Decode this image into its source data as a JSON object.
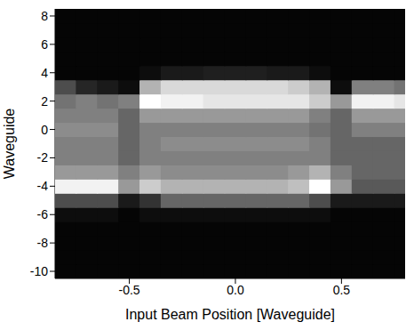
{
  "chart_data": {
    "type": "heatmap",
    "x_label": "Input Beam Position [Waveguide]",
    "y_label": "Waveguide",
    "xlim": [
      -0.85,
      0.8
    ],
    "ylim": [
      -10.5,
      8.5
    ],
    "xticks": [
      -0.5,
      {
        "value": 0,
        "label": "0.0"
      },
      0.5
    ],
    "yticks": [
      -10,
      -8,
      -6,
      -4,
      -2,
      0,
      2,
      4,
      6,
      8
    ],
    "x": [
      -0.8,
      -0.7,
      -0.6,
      -0.5,
      -0.4,
      -0.3,
      -0.2,
      -0.1,
      0,
      0.1,
      0.2,
      0.3,
      0.4,
      0.5,
      0.6,
      0.7,
      0.8
    ],
    "y": [
      -10,
      -9,
      -8,
      -7,
      -6,
      -5,
      -4,
      -3,
      -2,
      -1,
      0,
      1,
      2,
      3,
      4,
      5,
      6,
      7,
      8
    ],
    "values": [
      [
        0.02,
        0.02,
        0.02,
        0.02,
        0.02,
        0.02,
        0.02,
        0.02,
        0.02,
        0.02,
        0.02,
        0.02,
        0.02,
        0.02,
        0.02,
        0.02,
        0.02
      ],
      [
        0.02,
        0.02,
        0.02,
        0.02,
        0.02,
        0.02,
        0.02,
        0.02,
        0.02,
        0.02,
        0.02,
        0.02,
        0.02,
        0.02,
        0.02,
        0.02,
        0.02
      ],
      [
        0.02,
        0.02,
        0.02,
        0.02,
        0.02,
        0.02,
        0.02,
        0.02,
        0.02,
        0.02,
        0.02,
        0.02,
        0.02,
        0.02,
        0.02,
        0.02,
        0.02
      ],
      [
        0.02,
        0.02,
        0.02,
        0.02,
        0.02,
        0.02,
        0.02,
        0.02,
        0.02,
        0.02,
        0.02,
        0.02,
        0.02,
        0.02,
        0.02,
        0.02,
        0.02
      ],
      [
        0.05,
        0.05,
        0.05,
        0.02,
        0.05,
        0.05,
        0.05,
        0.05,
        0.05,
        0.05,
        0.05,
        0.05,
        0.05,
        0.02,
        0.02,
        0.02,
        0.02
      ],
      [
        0.3,
        0.3,
        0.3,
        0.1,
        0.2,
        0.4,
        0.4,
        0.4,
        0.4,
        0.4,
        0.4,
        0.4,
        0.3,
        0.1,
        0.1,
        0.1,
        0.1
      ],
      [
        0.95,
        0.95,
        0.95,
        0.6,
        0.8,
        0.7,
        0.7,
        0.7,
        0.7,
        0.7,
        0.7,
        0.75,
        1.0,
        0.6,
        0.35,
        0.35,
        0.35
      ],
      [
        0.6,
        0.6,
        0.6,
        0.5,
        0.6,
        0.55,
        0.55,
        0.55,
        0.55,
        0.55,
        0.55,
        0.6,
        0.7,
        0.5,
        0.4,
        0.4,
        0.4
      ],
      [
        0.5,
        0.5,
        0.5,
        0.4,
        0.5,
        0.5,
        0.5,
        0.5,
        0.5,
        0.5,
        0.5,
        0.5,
        0.5,
        0.4,
        0.4,
        0.4,
        0.4
      ],
      [
        0.5,
        0.5,
        0.5,
        0.4,
        0.5,
        0.55,
        0.55,
        0.55,
        0.55,
        0.55,
        0.55,
        0.55,
        0.5,
        0.4,
        0.4,
        0.4,
        0.4
      ],
      [
        0.55,
        0.55,
        0.55,
        0.4,
        0.5,
        0.5,
        0.5,
        0.5,
        0.5,
        0.5,
        0.5,
        0.5,
        0.45,
        0.4,
        0.5,
        0.5,
        0.5
      ],
      [
        0.5,
        0.5,
        0.5,
        0.4,
        0.6,
        0.6,
        0.6,
        0.6,
        0.6,
        0.6,
        0.6,
        0.6,
        0.5,
        0.4,
        0.6,
        0.6,
        0.6
      ],
      [
        0.45,
        0.5,
        0.45,
        0.5,
        1.0,
        0.95,
        0.95,
        0.9,
        0.9,
        0.9,
        0.9,
        0.9,
        0.8,
        0.6,
        0.95,
        0.95,
        0.9
      ],
      [
        0.3,
        0.15,
        0.1,
        0.05,
        0.7,
        0.85,
        0.85,
        0.85,
        0.85,
        0.85,
        0.85,
        0.8,
        0.7,
        0.05,
        0.5,
        0.5,
        0.45
      ],
      [
        0.02,
        0.02,
        0.02,
        0.02,
        0.05,
        0.1,
        0.1,
        0.12,
        0.12,
        0.12,
        0.1,
        0.1,
        0.05,
        0.02,
        0.02,
        0.02,
        0.02
      ],
      [
        0.02,
        0.02,
        0.02,
        0.02,
        0.02,
        0.02,
        0.02,
        0.02,
        0.02,
        0.02,
        0.02,
        0.02,
        0.02,
        0.02,
        0.02,
        0.02,
        0.02
      ],
      [
        0.02,
        0.02,
        0.02,
        0.02,
        0.02,
        0.02,
        0.02,
        0.02,
        0.02,
        0.02,
        0.02,
        0.02,
        0.02,
        0.02,
        0.02,
        0.02,
        0.02
      ],
      [
        0.02,
        0.02,
        0.02,
        0.02,
        0.02,
        0.02,
        0.02,
        0.02,
        0.02,
        0.02,
        0.02,
        0.02,
        0.02,
        0.02,
        0.02,
        0.02,
        0.02
      ],
      [
        0.02,
        0.02,
        0.02,
        0.02,
        0.02,
        0.02,
        0.02,
        0.02,
        0.02,
        0.02,
        0.02,
        0.02,
        0.02,
        0.02,
        0.02,
        0.02,
        0.02
      ]
    ]
  }
}
